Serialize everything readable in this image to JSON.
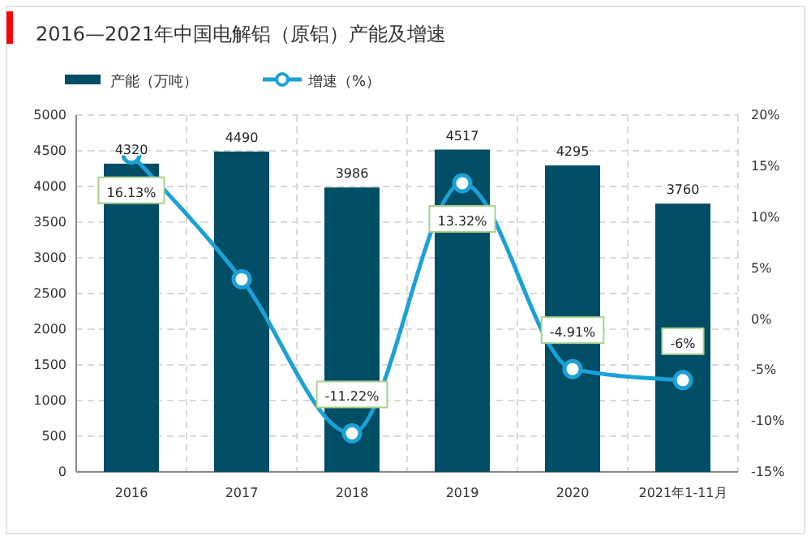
{
  "chart_data": {
    "type": "bar",
    "title": "2016—2021年中国电解铝（原铝）产能及增速",
    "categories": [
      "2016",
      "2017",
      "2018",
      "2019",
      "2020",
      "2021年1-11月"
    ],
    "series": [
      {
        "name": "产能（万吨）",
        "color": "#004d66",
        "values": [
          4320,
          4490,
          3986,
          4517,
          4295,
          3760
        ],
        "value_labels": [
          "4320",
          "4490",
          "3986",
          "4517",
          "4295",
          "3760"
        ]
      },
      {
        "name": "增速（%）",
        "type": "line",
        "axis": "y2",
        "color": "#1ba1d6",
        "marker": "circle",
        "values": [
          16.13,
          3.9,
          -11.22,
          13.32,
          -4.91,
          -6
        ],
        "value_labels": [
          "16.13%",
          null,
          "-11.22%",
          "13.32%",
          "-4.91%",
          "-6%"
        ]
      }
    ],
    "ylim": [
      0,
      5000
    ],
    "yticks": [
      0,
      500,
      1000,
      1500,
      2000,
      2500,
      3000,
      3500,
      4000,
      4500,
      5000
    ],
    "y2lim": [
      -15,
      20
    ],
    "y2ticks": [
      {
        "value": -15,
        "label": "-15%"
      },
      {
        "value": -10,
        "label": "-10%"
      },
      {
        "value": -5,
        "label": "-5%"
      },
      {
        "value": 0,
        "label": "0%"
      },
      {
        "value": 5,
        "label": "5%"
      },
      {
        "value": 10,
        "label": "10%"
      },
      {
        "value": 15,
        "label": "15%"
      },
      {
        "value": 20,
        "label": "20%"
      }
    ],
    "grid": true,
    "legend": "top left"
  }
}
